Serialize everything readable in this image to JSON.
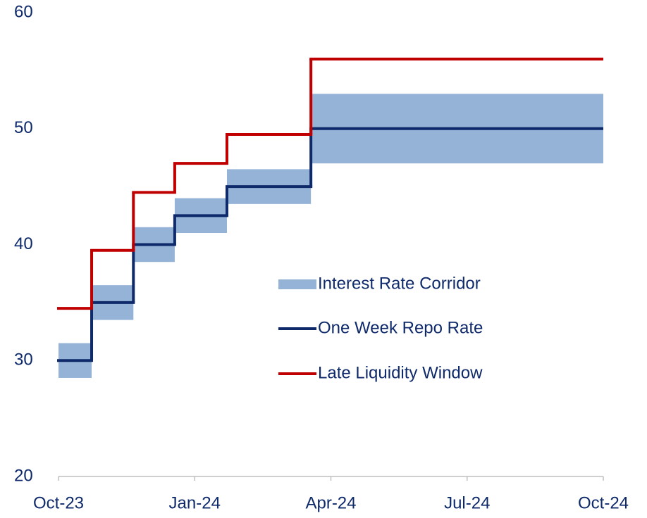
{
  "chart_data": {
    "type": "line",
    "step": true,
    "x": [
      0,
      0.73,
      1.65,
      2.56,
      3.71,
      5.56
    ],
    "xlim": [
      0,
      12
    ],
    "xticks": [
      {
        "value": 0,
        "label": "Oct-23"
      },
      {
        "value": 3,
        "label": "Jan-24"
      },
      {
        "value": 6,
        "label": "Apr-24"
      },
      {
        "value": 9,
        "label": "Jul-24"
      },
      {
        "value": 12,
        "label": "Oct-24"
      }
    ],
    "ylim": [
      20,
      60
    ],
    "yticks": [
      20,
      30,
      40,
      50,
      60
    ],
    "series": [
      {
        "name": "Interest Rate Corridor",
        "type": "band",
        "color": "#95b3d7",
        "low": [
          28.5,
          33.5,
          38.5,
          41,
          43.5,
          47
        ],
        "high": [
          31.5,
          36.5,
          41.5,
          44,
          46.5,
          53
        ]
      },
      {
        "name": "One Week Repo Rate",
        "color": "#0f2a6b",
        "values": [
          30,
          35,
          40,
          42.5,
          45,
          50
        ]
      },
      {
        "name": "Late Liquidity Window",
        "color": "#c00000",
        "values": [
          34.5,
          39.5,
          44.5,
          47,
          49.5,
          56
        ]
      }
    ]
  }
}
